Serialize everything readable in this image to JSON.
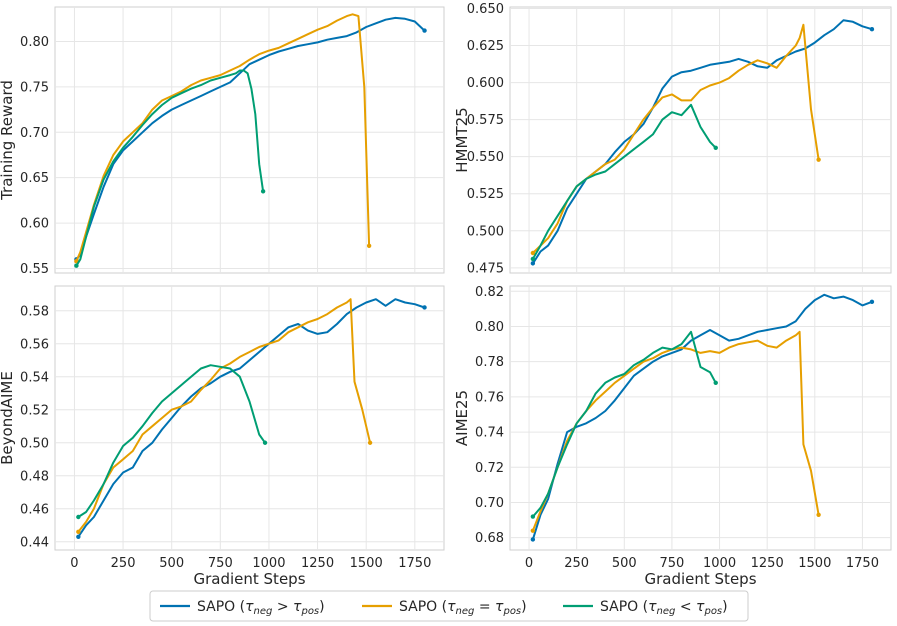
{
  "legend": {
    "series": [
      {
        "name": "SAPO (τneg > τpos)",
        "base": "SAPO (",
        "sub1": "neg",
        "op": " > ",
        "sub2": "pos",
        "close": ")",
        "color": "#0072B2"
      },
      {
        "name": "SAPO (τneg = τpos)",
        "base": "SAPO (",
        "sub1": "neg",
        "op": " = ",
        "sub2": "pos",
        "close": ")",
        "color": "#E69F00"
      },
      {
        "name": "SAPO (τneg < τpos)",
        "base": "SAPO (",
        "sub1": "neg",
        "op": " < ",
        "sub2": "pos",
        "close": ")",
        "color": "#009E73"
      }
    ],
    "placement": "bottom-center"
  },
  "chart_data": [
    {
      "type": "line",
      "ylabel": "Training Reward",
      "xlabel": "",
      "xlim": [
        -100,
        1900
      ],
      "ylim": [
        0.545,
        0.838
      ],
      "xticks": [
        0,
        250,
        500,
        750,
        1000,
        1250,
        1500,
        1750
      ],
      "show_xtick_labels": false,
      "yticks": [
        0.55,
        0.6,
        0.65,
        0.7,
        0.75,
        0.8
      ],
      "ytick_labels": [
        "0.55",
        "0.60",
        "0.65",
        "0.70",
        "0.75",
        "0.80"
      ],
      "grid": true,
      "series": [
        {
          "color": "#0072B2",
          "x": [
            10,
            30,
            60,
            100,
            150,
            200,
            250,
            300,
            350,
            400,
            450,
            500,
            550,
            600,
            650,
            700,
            750,
            800,
            850,
            900,
            950,
            1000,
            1050,
            1100,
            1150,
            1200,
            1250,
            1300,
            1350,
            1400,
            1450,
            1500,
            1550,
            1600,
            1650,
            1700,
            1750,
            1800
          ],
          "values": [
            0.56,
            0.565,
            0.585,
            0.61,
            0.64,
            0.665,
            0.68,
            0.69,
            0.7,
            0.71,
            0.718,
            0.725,
            0.73,
            0.735,
            0.74,
            0.745,
            0.75,
            0.755,
            0.765,
            0.775,
            0.78,
            0.785,
            0.789,
            0.792,
            0.795,
            0.797,
            0.799,
            0.802,
            0.804,
            0.806,
            0.81,
            0.816,
            0.82,
            0.824,
            0.826,
            0.825,
            0.822,
            0.812
          ]
        },
        {
          "color": "#E69F00",
          "x": [
            10,
            30,
            60,
            100,
            150,
            200,
            250,
            300,
            350,
            400,
            450,
            500,
            550,
            600,
            650,
            700,
            750,
            800,
            850,
            900,
            950,
            1000,
            1050,
            1100,
            1150,
            1200,
            1250,
            1300,
            1350,
            1400,
            1430,
            1460,
            1490,
            1515
          ],
          "values": [
            0.558,
            0.568,
            0.59,
            0.62,
            0.652,
            0.675,
            0.69,
            0.7,
            0.71,
            0.725,
            0.735,
            0.74,
            0.745,
            0.752,
            0.757,
            0.76,
            0.763,
            0.768,
            0.773,
            0.78,
            0.786,
            0.79,
            0.793,
            0.798,
            0.803,
            0.808,
            0.813,
            0.817,
            0.823,
            0.828,
            0.83,
            0.828,
            0.75,
            0.575
          ]
        },
        {
          "color": "#009E73",
          "x": [
            10,
            30,
            60,
            100,
            150,
            200,
            250,
            300,
            350,
            400,
            450,
            500,
            550,
            600,
            650,
            700,
            750,
            800,
            830,
            850,
            870,
            890,
            910,
            930,
            950,
            970
          ],
          "values": [
            0.553,
            0.56,
            0.585,
            0.618,
            0.648,
            0.668,
            0.683,
            0.695,
            0.708,
            0.72,
            0.73,
            0.738,
            0.743,
            0.748,
            0.752,
            0.757,
            0.76,
            0.763,
            0.765,
            0.768,
            0.768,
            0.765,
            0.748,
            0.72,
            0.665,
            0.635
          ]
        }
      ]
    },
    {
      "type": "line",
      "ylabel": "HMMT25",
      "xlabel": "",
      "xlim": [
        -100,
        1900
      ],
      "ylim": [
        0.4715,
        0.651
      ],
      "xticks": [
        0,
        250,
        500,
        750,
        1000,
        1250,
        1500,
        1750
      ],
      "show_xtick_labels": false,
      "yticks": [
        0.475,
        0.5,
        0.525,
        0.55,
        0.575,
        0.6,
        0.625,
        0.65
      ],
      "ytick_labels": [
        "0.475",
        "0.500",
        "0.525",
        "0.550",
        "0.575",
        "0.600",
        "0.625",
        "0.650"
      ],
      "grid": true,
      "series": [
        {
          "color": "#0072B2",
          "x": [
            20,
            60,
            100,
            150,
            200,
            250,
            300,
            350,
            400,
            450,
            500,
            550,
            600,
            650,
            700,
            750,
            800,
            850,
            900,
            950,
            1000,
            1050,
            1100,
            1150,
            1200,
            1250,
            1300,
            1350,
            1400,
            1450,
            1500,
            1550,
            1600,
            1650,
            1700,
            1750,
            1800
          ],
          "values": [
            0.478,
            0.486,
            0.49,
            0.5,
            0.515,
            0.525,
            0.535,
            0.54,
            0.545,
            0.553,
            0.56,
            0.565,
            0.572,
            0.583,
            0.596,
            0.604,
            0.607,
            0.608,
            0.61,
            0.612,
            0.613,
            0.614,
            0.616,
            0.614,
            0.611,
            0.61,
            0.615,
            0.618,
            0.621,
            0.623,
            0.627,
            0.632,
            0.636,
            0.642,
            0.641,
            0.638,
            0.636
          ]
        },
        {
          "color": "#E69F00",
          "x": [
            20,
            60,
            100,
            150,
            200,
            250,
            300,
            350,
            400,
            450,
            500,
            550,
            600,
            650,
            700,
            750,
            800,
            850,
            900,
            950,
            1000,
            1050,
            1100,
            1150,
            1200,
            1250,
            1300,
            1350,
            1400,
            1420,
            1440,
            1480,
            1520
          ],
          "values": [
            0.485,
            0.49,
            0.495,
            0.505,
            0.52,
            0.53,
            0.535,
            0.54,
            0.545,
            0.548,
            0.555,
            0.565,
            0.575,
            0.583,
            0.59,
            0.592,
            0.588,
            0.588,
            0.595,
            0.598,
            0.6,
            0.603,
            0.608,
            0.612,
            0.615,
            0.613,
            0.61,
            0.618,
            0.625,
            0.63,
            0.639,
            0.582,
            0.548
          ]
        },
        {
          "color": "#009E73",
          "x": [
            20,
            60,
            100,
            150,
            200,
            250,
            300,
            350,
            400,
            450,
            500,
            550,
            600,
            650,
            700,
            750,
            800,
            850,
            900,
            950,
            980
          ],
          "values": [
            0.481,
            0.49,
            0.5,
            0.51,
            0.52,
            0.53,
            0.535,
            0.538,
            0.54,
            0.545,
            0.55,
            0.555,
            0.56,
            0.565,
            0.575,
            0.58,
            0.578,
            0.585,
            0.57,
            0.56,
            0.556
          ]
        }
      ]
    },
    {
      "type": "line",
      "ylabel": "BeyondAIME",
      "xlabel": "Gradient Steps",
      "xlim": [
        -100,
        1900
      ],
      "ylim": [
        0.435,
        0.595
      ],
      "xticks": [
        0,
        250,
        500,
        750,
        1000,
        1250,
        1500,
        1750
      ],
      "show_xtick_labels": true,
      "yticks": [
        0.44,
        0.46,
        0.48,
        0.5,
        0.52,
        0.54,
        0.56,
        0.58
      ],
      "ytick_labels": [
        "0.44",
        "0.46",
        "0.48",
        "0.50",
        "0.52",
        "0.54",
        "0.56",
        "0.58"
      ],
      "grid": true,
      "series": [
        {
          "color": "#0072B2",
          "x": [
            20,
            60,
            100,
            150,
            200,
            250,
            300,
            350,
            400,
            450,
            500,
            550,
            600,
            650,
            700,
            750,
            800,
            850,
            900,
            950,
            1000,
            1050,
            1100,
            1150,
            1200,
            1250,
            1300,
            1350,
            1400,
            1450,
            1500,
            1550,
            1600,
            1650,
            1700,
            1750,
            1800
          ],
          "values": [
            0.443,
            0.45,
            0.455,
            0.465,
            0.475,
            0.482,
            0.485,
            0.495,
            0.5,
            0.508,
            0.515,
            0.522,
            0.528,
            0.533,
            0.536,
            0.54,
            0.543,
            0.545,
            0.55,
            0.555,
            0.56,
            0.565,
            0.57,
            0.572,
            0.568,
            0.566,
            0.567,
            0.572,
            0.578,
            0.582,
            0.585,
            0.587,
            0.583,
            0.587,
            0.585,
            0.584,
            0.582
          ]
        },
        {
          "color": "#E69F00",
          "x": [
            20,
            60,
            100,
            150,
            200,
            250,
            300,
            350,
            400,
            450,
            500,
            550,
            600,
            650,
            700,
            750,
            800,
            850,
            900,
            950,
            1000,
            1050,
            1100,
            1150,
            1200,
            1250,
            1300,
            1350,
            1400,
            1420,
            1440,
            1480,
            1520
          ],
          "values": [
            0.446,
            0.452,
            0.46,
            0.475,
            0.485,
            0.49,
            0.495,
            0.505,
            0.51,
            0.515,
            0.52,
            0.522,
            0.525,
            0.532,
            0.538,
            0.545,
            0.548,
            0.552,
            0.555,
            0.558,
            0.56,
            0.562,
            0.567,
            0.57,
            0.573,
            0.575,
            0.578,
            0.582,
            0.585,
            0.587,
            0.537,
            0.52,
            0.5
          ]
        },
        {
          "color": "#009E73",
          "x": [
            20,
            60,
            100,
            150,
            200,
            250,
            300,
            350,
            400,
            450,
            500,
            550,
            600,
            650,
            700,
            750,
            800,
            850,
            900,
            950,
            980
          ],
          "values": [
            0.455,
            0.458,
            0.465,
            0.475,
            0.488,
            0.498,
            0.503,
            0.51,
            0.518,
            0.525,
            0.53,
            0.535,
            0.54,
            0.545,
            0.547,
            0.546,
            0.545,
            0.54,
            0.525,
            0.505,
            0.5
          ]
        }
      ]
    },
    {
      "type": "line",
      "ylabel": "AIME25",
      "xlabel": "Gradient Steps",
      "xlim": [
        -100,
        1900
      ],
      "ylim": [
        0.673,
        0.823
      ],
      "xticks": [
        0,
        250,
        500,
        750,
        1000,
        1250,
        1500,
        1750
      ],
      "show_xtick_labels": true,
      "yticks": [
        0.68,
        0.7,
        0.72,
        0.74,
        0.76,
        0.78,
        0.8,
        0.82
      ],
      "ytick_labels": [
        "0.68",
        "0.70",
        "0.72",
        "0.74",
        "0.76",
        "0.78",
        "0.80",
        "0.82"
      ],
      "grid": true,
      "series": [
        {
          "color": "#0072B2",
          "x": [
            20,
            60,
            100,
            150,
            200,
            250,
            300,
            350,
            400,
            450,
            500,
            550,
            600,
            650,
            700,
            750,
            800,
            850,
            900,
            950,
            1000,
            1050,
            1100,
            1150,
            1200,
            1250,
            1300,
            1350,
            1400,
            1450,
            1500,
            1550,
            1600,
            1650,
            1700,
            1750,
            1800
          ],
          "values": [
            0.679,
            0.693,
            0.702,
            0.722,
            0.74,
            0.743,
            0.745,
            0.748,
            0.752,
            0.758,
            0.765,
            0.772,
            0.776,
            0.78,
            0.783,
            0.785,
            0.787,
            0.792,
            0.795,
            0.798,
            0.795,
            0.792,
            0.793,
            0.795,
            0.797,
            0.798,
            0.799,
            0.8,
            0.803,
            0.81,
            0.815,
            0.818,
            0.816,
            0.817,
            0.815,
            0.812,
            0.814
          ]
        },
        {
          "color": "#E69F00",
          "x": [
            20,
            60,
            100,
            150,
            200,
            250,
            300,
            350,
            400,
            450,
            500,
            550,
            600,
            650,
            700,
            750,
            800,
            850,
            900,
            950,
            1000,
            1050,
            1100,
            1150,
            1200,
            1250,
            1300,
            1350,
            1400,
            1420,
            1440,
            1480,
            1520
          ],
          "values": [
            0.684,
            0.695,
            0.705,
            0.72,
            0.735,
            0.745,
            0.752,
            0.758,
            0.763,
            0.768,
            0.772,
            0.776,
            0.78,
            0.782,
            0.785,
            0.787,
            0.788,
            0.787,
            0.785,
            0.786,
            0.785,
            0.788,
            0.79,
            0.791,
            0.792,
            0.789,
            0.788,
            0.792,
            0.795,
            0.797,
            0.733,
            0.718,
            0.693
          ]
        },
        {
          "color": "#009E73",
          "x": [
            20,
            60,
            100,
            150,
            200,
            250,
            300,
            350,
            400,
            450,
            500,
            550,
            600,
            650,
            700,
            750,
            800,
            850,
            900,
            950,
            980
          ],
          "values": [
            0.692,
            0.697,
            0.705,
            0.72,
            0.733,
            0.745,
            0.752,
            0.762,
            0.768,
            0.771,
            0.773,
            0.778,
            0.781,
            0.785,
            0.788,
            0.787,
            0.79,
            0.797,
            0.777,
            0.774,
            0.768
          ]
        }
      ]
    }
  ]
}
